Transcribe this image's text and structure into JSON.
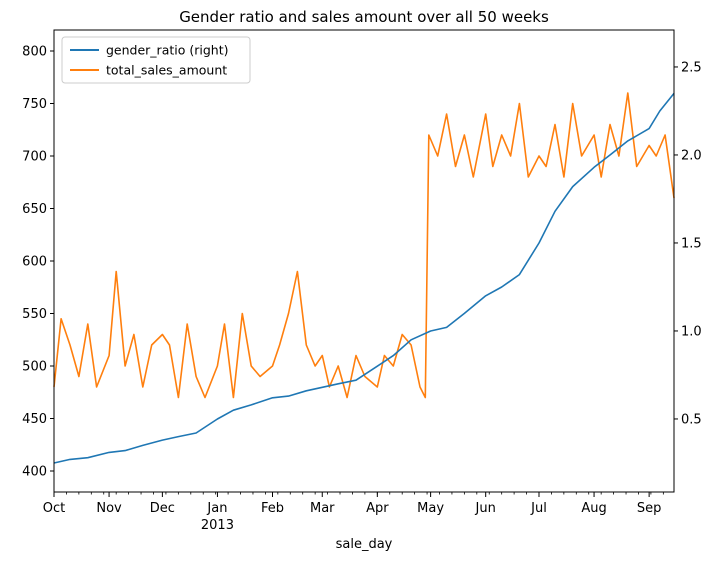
{
  "chart_data": {
    "type": "line",
    "title": "Gender ratio and sales amount over all 50 weeks",
    "xlabel": "sale_day",
    "x_range": [
      "2012-10-01",
      "2013-09-15"
    ],
    "x_ticks": [
      {
        "date": "2012-10-01",
        "label": "Oct",
        "sublabel": ""
      },
      {
        "date": "2012-11-01",
        "label": "Nov",
        "sublabel": ""
      },
      {
        "date": "2012-12-01",
        "label": "Dec",
        "sublabel": ""
      },
      {
        "date": "2013-01-01",
        "label": "Jan",
        "sublabel": "2013"
      },
      {
        "date": "2013-02-01",
        "label": "Feb",
        "sublabel": ""
      },
      {
        "date": "2013-03-01",
        "label": "Mar",
        "sublabel": ""
      },
      {
        "date": "2013-04-01",
        "label": "Apr",
        "sublabel": ""
      },
      {
        "date": "2013-05-01",
        "label": "May",
        "sublabel": ""
      },
      {
        "date": "2013-06-01",
        "label": "Jun",
        "sublabel": ""
      },
      {
        "date": "2013-07-01",
        "label": "Jul",
        "sublabel": ""
      },
      {
        "date": "2013-08-01",
        "label": "Aug",
        "sublabel": ""
      },
      {
        "date": "2013-09-01",
        "label": "Sep",
        "sublabel": ""
      }
    ],
    "y_left": {
      "ylim": [
        380,
        820
      ],
      "ticks": [
        400,
        450,
        500,
        550,
        600,
        650,
        700,
        750,
        800
      ]
    },
    "y_right": {
      "ylim": [
        0.085,
        2.71
      ],
      "ticks": [
        0.5,
        1.0,
        1.5,
        2.0,
        2.5
      ],
      "tick_labels": [
        "0.5",
        "1.0",
        "1.5",
        "2.0",
        "2.5"
      ]
    },
    "grid": false,
    "legend_position": "top-left",
    "series": [
      {
        "name": "gender_ratio (right)",
        "axis": "right",
        "color": "#1f77b4",
        "points": [
          [
            "2012-10-01",
            0.25
          ],
          [
            "2012-10-10",
            0.27
          ],
          [
            "2012-10-20",
            0.28
          ],
          [
            "2012-11-01",
            0.31
          ],
          [
            "2012-11-10",
            0.32
          ],
          [
            "2012-11-20",
            0.35
          ],
          [
            "2012-12-01",
            0.38
          ],
          [
            "2012-12-10",
            0.4
          ],
          [
            "2012-12-20",
            0.42
          ],
          [
            "2013-01-01",
            0.5
          ],
          [
            "2013-01-10",
            0.55
          ],
          [
            "2013-01-20",
            0.58
          ],
          [
            "2013-02-01",
            0.62
          ],
          [
            "2013-02-10",
            0.63
          ],
          [
            "2013-02-20",
            0.66
          ],
          [
            "2013-03-01",
            0.68
          ],
          [
            "2013-03-10",
            0.7
          ],
          [
            "2013-03-20",
            0.72
          ],
          [
            "2013-04-01",
            0.8
          ],
          [
            "2013-04-10",
            0.86
          ],
          [
            "2013-04-20",
            0.95
          ],
          [
            "2013-05-01",
            1.0
          ],
          [
            "2013-05-10",
            1.02
          ],
          [
            "2013-05-20",
            1.1
          ],
          [
            "2013-06-01",
            1.2
          ],
          [
            "2013-06-10",
            1.25
          ],
          [
            "2013-06-20",
            1.32
          ],
          [
            "2013-07-01",
            1.5
          ],
          [
            "2013-07-10",
            1.68
          ],
          [
            "2013-07-20",
            1.82
          ],
          [
            "2013-08-01",
            1.93
          ],
          [
            "2013-08-10",
            2.0
          ],
          [
            "2013-08-20",
            2.08
          ],
          [
            "2013-09-01",
            2.15
          ],
          [
            "2013-09-07",
            2.25
          ],
          [
            "2013-09-15",
            2.35
          ]
        ]
      },
      {
        "name": "total_sales_amount",
        "axis": "left",
        "color": "#ff7f0e",
        "points": [
          [
            "2012-10-01",
            480
          ],
          [
            "2012-10-05",
            545
          ],
          [
            "2012-10-10",
            520
          ],
          [
            "2012-10-15",
            490
          ],
          [
            "2012-10-20",
            540
          ],
          [
            "2012-10-25",
            480
          ],
          [
            "2012-11-01",
            510
          ],
          [
            "2012-11-05",
            590
          ],
          [
            "2012-11-10",
            500
          ],
          [
            "2012-11-15",
            530
          ],
          [
            "2012-11-20",
            480
          ],
          [
            "2012-11-25",
            520
          ],
          [
            "2012-12-01",
            530
          ],
          [
            "2012-12-05",
            520
          ],
          [
            "2012-12-10",
            470
          ],
          [
            "2012-12-15",
            540
          ],
          [
            "2012-12-20",
            490
          ],
          [
            "2012-12-25",
            470
          ],
          [
            "2013-01-01",
            500
          ],
          [
            "2013-01-05",
            540
          ],
          [
            "2013-01-10",
            470
          ],
          [
            "2013-01-15",
            550
          ],
          [
            "2013-01-20",
            500
          ],
          [
            "2013-01-25",
            490
          ],
          [
            "2013-02-01",
            500
          ],
          [
            "2013-02-05",
            520
          ],
          [
            "2013-02-10",
            550
          ],
          [
            "2013-02-15",
            590
          ],
          [
            "2013-02-20",
            520
          ],
          [
            "2013-02-25",
            500
          ],
          [
            "2013-03-01",
            510
          ],
          [
            "2013-03-05",
            480
          ],
          [
            "2013-03-10",
            500
          ],
          [
            "2013-03-15",
            470
          ],
          [
            "2013-03-20",
            510
          ],
          [
            "2013-03-25",
            490
          ],
          [
            "2013-04-01",
            480
          ],
          [
            "2013-04-05",
            510
          ],
          [
            "2013-04-10",
            500
          ],
          [
            "2013-04-15",
            530
          ],
          [
            "2013-04-20",
            520
          ],
          [
            "2013-04-25",
            480
          ],
          [
            "2013-04-28",
            470
          ],
          [
            "2013-04-30",
            720
          ],
          [
            "2013-05-05",
            700
          ],
          [
            "2013-05-10",
            740
          ],
          [
            "2013-05-15",
            690
          ],
          [
            "2013-05-20",
            720
          ],
          [
            "2013-05-25",
            680
          ],
          [
            "2013-06-01",
            740
          ],
          [
            "2013-06-05",
            690
          ],
          [
            "2013-06-10",
            720
          ],
          [
            "2013-06-15",
            700
          ],
          [
            "2013-06-20",
            750
          ],
          [
            "2013-06-25",
            680
          ],
          [
            "2013-07-01",
            700
          ],
          [
            "2013-07-05",
            690
          ],
          [
            "2013-07-10",
            730
          ],
          [
            "2013-07-15",
            680
          ],
          [
            "2013-07-20",
            750
          ],
          [
            "2013-07-25",
            700
          ],
          [
            "2013-08-01",
            720
          ],
          [
            "2013-08-05",
            680
          ],
          [
            "2013-08-10",
            730
          ],
          [
            "2013-08-15",
            700
          ],
          [
            "2013-08-20",
            760
          ],
          [
            "2013-08-25",
            690
          ],
          [
            "2013-09-01",
            710
          ],
          [
            "2013-09-05",
            700
          ],
          [
            "2013-09-10",
            720
          ],
          [
            "2013-09-15",
            660
          ]
        ]
      }
    ]
  }
}
